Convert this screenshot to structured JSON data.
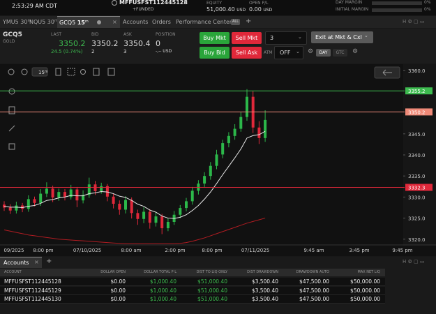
{
  "header": {
    "time": "2:53:29 AM CDT",
    "account": "MFFUSFST112445128",
    "account_status": "+FUNDED",
    "equity_label": "EQUITY",
    "equity": "51,000.40",
    "equity_unit": "USD",
    "open_pl_label": "OPEN P/L",
    "open_pl": "0.00",
    "open_pl_unit": "USD",
    "day_margin_label": "DAY MARGIN",
    "day_margin": "0%",
    "initial_margin_label": "INITIAL MARGIN",
    "initial_margin": "0%"
  },
  "tabs": [
    {
      "symbol": "YMU5",
      "interval": "30",
      "unit": "m"
    },
    {
      "symbol": "NQU5",
      "interval": "30",
      "unit": "m"
    },
    {
      "symbol": "GCQ5",
      "interval": "15",
      "unit": "m"
    }
  ],
  "nav": [
    "Accounts",
    "Orders",
    "Performance Center"
  ],
  "nav_badge": "ALL",
  "quote": {
    "symbol": "GCQ5",
    "name": "GOLD",
    "last_label": "LAST",
    "last": "3350.2",
    "change": "24.5 (0.74%)",
    "bid_label": "BID",
    "bid": "3350.2",
    "bid_size": "2",
    "ask_label": "ASK",
    "ask": "3350.4",
    "ask_size": "3",
    "position_label": "POSITION",
    "position": "0",
    "position_pl": "-,-- USD"
  },
  "order_entry": {
    "buy_market": "Buy Mkt",
    "sell_market": "Sell Mkt",
    "quantity": "3",
    "exit": "Exit at Mkt & Cxl",
    "buy_bid": "Buy Bid",
    "sell_ask": "Sell Ask",
    "atm_label": "ATM",
    "atm": "OFF",
    "day": "DAY",
    "gtc": "GTC"
  },
  "chart_toolbar": {
    "interval": "15",
    "unit": "m"
  },
  "price_chart": {
    "type": "candlestick",
    "up_color": "#2cb84a",
    "down_color": "#e0283a",
    "open": [
      3328.2,
      3327.5,
      3326.8,
      3328.0,
      3327.2,
      3329.5,
      3328.6,
      3330.8,
      3332.0,
      3329.9,
      3331.2,
      3330.0,
      3331.8,
      3329.2,
      3330.5,
      3333.0,
      3331.4,
      3332.6,
      3330.1,
      3328.4,
      3327.0,
      3329.3,
      3326.2,
      3324.8,
      3326.5,
      3323.9,
      3325.4,
      3322.6,
      3324.1,
      3325.8,
      3327.4,
      3329.0,
      3331.5,
      3333.2,
      3335.0,
      3337.4,
      3340.1,
      3342.8,
      3344.5,
      3346.2,
      3349.0,
      3353.8,
      3346.5,
      3344.0
    ],
    "high": [
      3329.0,
      3328.3,
      3328.9,
      3328.6,
      3330.4,
      3330.1,
      3331.9,
      3333.5,
      3332.7,
      3332.0,
      3331.9,
      3332.9,
      3332.4,
      3331.6,
      3334.6,
      3333.8,
      3333.4,
      3333.1,
      3330.9,
      3329.2,
      3330.2,
      3329.9,
      3327.0,
      3327.6,
      3327.1,
      3326.3,
      3326.0,
      3325.0,
      3326.7,
      3328.1,
      3329.8,
      3332.4,
      3334.0,
      3335.9,
      3338.3,
      3341.2,
      3343.6,
      3345.4,
      3347.3,
      3350.1,
      3355.6,
      3355.2,
      3348.0,
      3350.6
    ],
    "low": [
      3326.7,
      3326.0,
      3326.1,
      3326.4,
      3326.5,
      3327.8,
      3327.9,
      3330.0,
      3328.8,
      3329.1,
      3329.2,
      3329.4,
      3327.6,
      3328.5,
      3329.8,
      3330.5,
      3330.8,
      3329.0,
      3327.3,
      3325.8,
      3326.1,
      3324.9,
      3323.4,
      3323.8,
      3322.5,
      3323.0,
      3321.2,
      3321.9,
      3323.4,
      3325.0,
      3326.6,
      3328.2,
      3330.6,
      3332.4,
      3334.1,
      3336.6,
      3339.2,
      3341.8,
      3343.6,
      3345.5,
      3348.1,
      3345.2,
      3342.6,
      3343.1
    ],
    "close": [
      3327.5,
      3326.8,
      3328.0,
      3327.2,
      3329.5,
      3328.6,
      3330.8,
      3332.0,
      3329.9,
      3331.2,
      3330.0,
      3331.8,
      3329.2,
      3330.5,
      3333.0,
      3331.4,
      3332.6,
      3330.1,
      3328.4,
      3327.0,
      3329.3,
      3326.2,
      3324.8,
      3326.5,
      3323.9,
      3325.4,
      3322.6,
      3324.1,
      3325.8,
      3327.4,
      3329.0,
      3331.5,
      3333.2,
      3335.0,
      3337.4,
      3340.1,
      3342.8,
      3344.5,
      3346.2,
      3349.0,
      3353.8,
      3346.5,
      3344.0,
      3348.3
    ],
    "moving_average": {
      "color": "#e8e8e8",
      "values": [
        3327.8,
        3327.6,
        3327.6,
        3327.5,
        3327.8,
        3328.0,
        3328.5,
        3329.2,
        3329.4,
        3329.8,
        3330.0,
        3330.4,
        3330.3,
        3330.3,
        3330.8,
        3331.0,
        3331.3,
        3331.2,
        3330.8,
        3330.2,
        3329.9,
        3329.2,
        3328.3,
        3327.8,
        3326.9,
        3326.4,
        3325.5,
        3325.0,
        3324.9,
        3325.2,
        3325.8,
        3326.8,
        3328.0,
        3329.5,
        3331.2,
        3333.2,
        3335.3,
        3337.3,
        3339.3,
        3341.4,
        3344.0,
        3344.6,
        3344.8,
        3345.6
      ]
    },
    "lower_line": {
      "color": "#b01c22",
      "values": [
        3322.2,
        3321.9,
        3321.6,
        3321.3,
        3321.0,
        3320.8,
        3320.6,
        3320.4,
        3320.2,
        3320.0,
        3319.9,
        3319.8,
        3319.7,
        3319.6,
        3319.5,
        3319.4,
        3319.3,
        3319.2,
        3319.1,
        3319.0,
        3318.9,
        3318.9,
        3318.9,
        3318.9,
        3318.9,
        3318.9,
        3318.9,
        3318.9,
        3318.9,
        3319.0,
        3319.2,
        3319.5,
        3319.9,
        3320.3,
        3320.8,
        3321.3,
        3321.8,
        3322.3,
        3322.8,
        3323.3,
        3323.8,
        3324.2,
        3324.6,
        3325.0
      ]
    },
    "ylim": [
      3318.8,
      3361.2
    ],
    "yticks": [
      {
        "value": 3360,
        "label": "3360.0"
      },
      {
        "value": 3345,
        "label": "3345.0"
      },
      {
        "value": 3340,
        "label": "3340.0"
      },
      {
        "value": 3335,
        "label": "3335.0"
      },
      {
        "value": 3330,
        "label": "3330.0"
      },
      {
        "value": 3325,
        "label": "3325.0"
      },
      {
        "value": 3320,
        "label": "3320.0"
      }
    ],
    "price_lines": [
      {
        "value": 3355.2,
        "color": "#3dbb4f"
      },
      {
        "value": 3350.2,
        "color": "#f08a78"
      },
      {
        "value": 3332.3,
        "color": "#e0283a"
      }
    ],
    "x_labels": [
      "09/2025",
      "8:00 pm",
      "07/10/2025",
      "8:00 am",
      "2:00 pm",
      "8:00 pm",
      "07/11/2025",
      "9:45 am",
      "3:45 pm",
      "9:45 pm"
    ]
  },
  "accounts": {
    "tab": "Accounts",
    "columns": [
      "ACCOUNT",
      "DOLLAR OPEN",
      "DOLLAR TOTAL P L",
      "DIST TO LIQ ONLY",
      "DIST DRAWDOWN",
      "DRAWDOWN AUTO",
      "MAX NET LIQ"
    ],
    "rows": [
      [
        "MFFUSFST112445128",
        "$0.00",
        "$1,000.40",
        "$51,000.40",
        "$3,500.40",
        "$47,500.00",
        "$50,000.00"
      ],
      [
        "MFFUSFST112445129",
        "$0.00",
        "$1,000.40",
        "$51,000.40",
        "$3,500.40",
        "$47,500.00",
        "$50,000.00"
      ],
      [
        "MFFUSFST112445130",
        "$0.00",
        "$1,000.40",
        "$51,000.40",
        "$3,500.40",
        "$47,500.00",
        "$50,000.00"
      ]
    ]
  }
}
